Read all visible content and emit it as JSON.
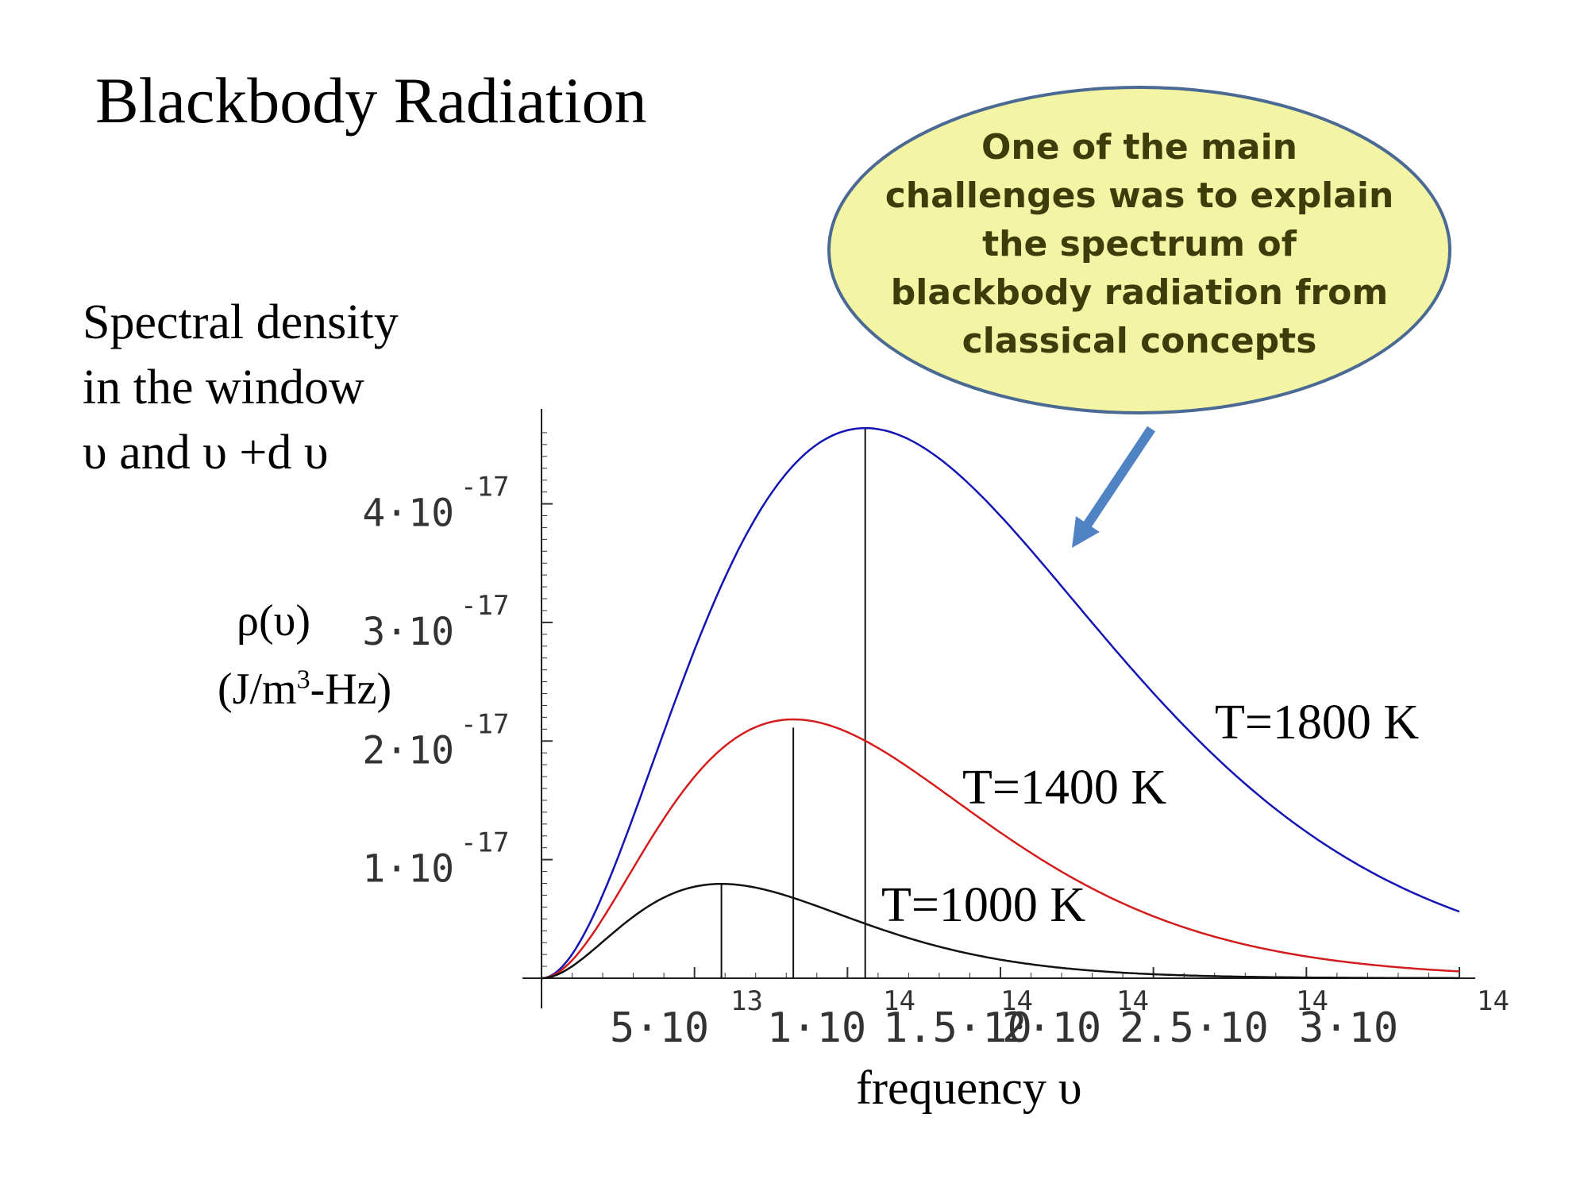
{
  "slide": {
    "title": "Blackbody Radiation",
    "side_label_lines": [
      "Spectral density",
      "in the window",
      "υ and υ +d υ"
    ],
    "ylabel_symbol": "ρ(υ)",
    "ylabel_unit_prefix": "(J/m",
    "ylabel_unit_exp": "3",
    "ylabel_unit_suffix": "-Hz)",
    "xlabel": "frequency  υ",
    "callout_lines": [
      "One of the main",
      "challenges was to explain",
      "the spectrum of",
      "blackbody radiation from",
      "classical concepts"
    ]
  },
  "colors": {
    "callout_fill": "#f4f5a4",
    "callout_stroke": "#4a6a94",
    "arrow": "#4f83c4",
    "text_dark_olive": "#3d3d0b"
  },
  "chart_data": {
    "type": "line",
    "title": "",
    "xlabel": "frequency  υ",
    "ylabel": "ρ(υ) (J/m3-Hz)",
    "xlim": [
      0,
      300000000000000.0
    ],
    "ylim": [
      0,
      4.7e-17
    ],
    "x_ticks": [
      {
        "value": 50000000000000.0,
        "mantissa": "5·10",
        "exp": "13"
      },
      {
        "value": 100000000000000.0,
        "mantissa": "1·10",
        "exp": "14"
      },
      {
        "value": 150000000000000.0,
        "mantissa": "1.5·10",
        "exp": "14"
      },
      {
        "value": 200000000000000.0,
        "mantissa": "2·10",
        "exp": "14"
      },
      {
        "value": 250000000000000.0,
        "mantissa": "2.5·10",
        "exp": "14"
      },
      {
        "value": 300000000000000.0,
        "mantissa": "3·10",
        "exp": "14"
      }
    ],
    "y_ticks": [
      {
        "value": 1e-17,
        "mantissa": "1·10",
        "exp": "-17"
      },
      {
        "value": 2e-17,
        "mantissa": "2·10",
        "exp": "-17"
      },
      {
        "value": 3e-17,
        "mantissa": "3·10",
        "exp": "-17"
      },
      {
        "value": 4e-17,
        "mantissa": "4·10",
        "exp": "-17"
      }
    ],
    "grid": false,
    "series": [
      {
        "name": "T=1800 K",
        "temperature": 1800,
        "color": "#1414b4",
        "peak_x": 105800000000000.0,
        "peak_y": 4.63e-17
      },
      {
        "name": "T=1400 K",
        "temperature": 1400,
        "color": "#d41c1c",
        "peak_x": 82300000000000.0,
        "peak_y": 2.18e-17
      },
      {
        "name": "T=1000 K",
        "temperature": 1000,
        "color": "#111111",
        "peak_x": 58800000000000.0,
        "peak_y": 7.9e-18
      }
    ],
    "peak_markers": true
  }
}
